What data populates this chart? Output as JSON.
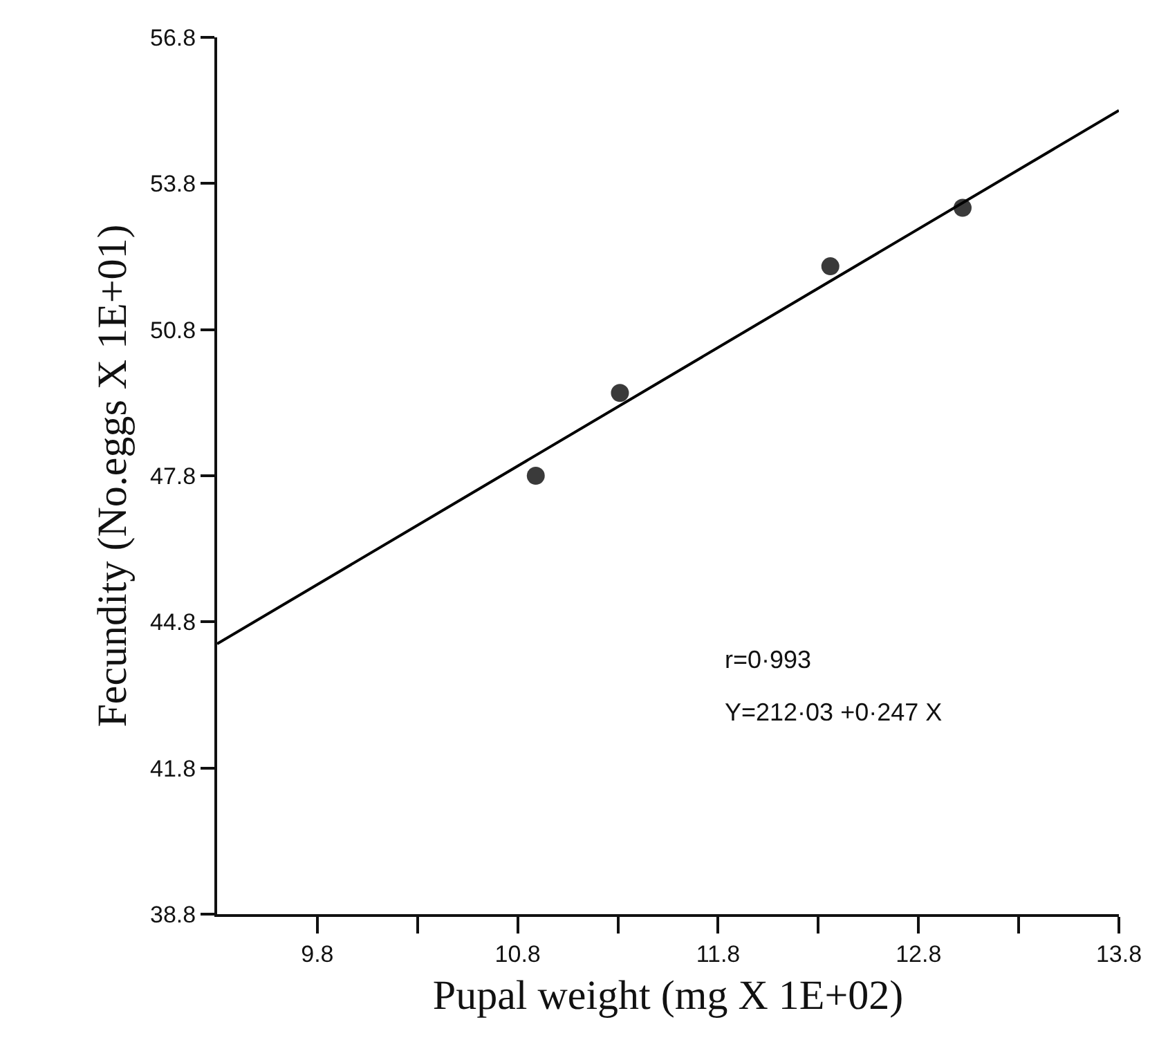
{
  "chart_data": {
    "type": "scatter",
    "xlabel": "Pupal weight (mg X 1E+02)",
    "ylabel": "Fecundity (No.eggs X 1E+01)",
    "x": [
      10.89,
      11.31,
      12.36,
      13.02
    ],
    "series": [
      {
        "color": "#3a3a3a",
        "values": [
          47.8,
          49.5,
          52.1,
          53.3
        ],
        "marker": "circle"
      },
      {
        "type": "line",
        "color": "#000000",
        "x": [
          9.3,
          13.8
        ],
        "values": [
          44.35,
          55.3
        ],
        "marker": "none",
        "line_style": "solid"
      }
    ],
    "xlim": [
      9.3,
      13.8
    ],
    "xticks": [
      9.8,
      {
        "value": 10.3,
        "label": null
      },
      10.8,
      {
        "value": 11.3,
        "label": null
      },
      11.8,
      {
        "value": 12.3,
        "label": null
      },
      12.8,
      {
        "value": 13.3,
        "label": null
      },
      13.8
    ],
    "ylim": [
      38.8,
      56.8
    ],
    "yticks": [
      38.8,
      41.8,
      44.8,
      47.8,
      50.8,
      53.8,
      56.8
    ],
    "annotations": [
      "r=0·993",
      "Y=212·03 +0·247 X"
    ],
    "legend": false
  }
}
